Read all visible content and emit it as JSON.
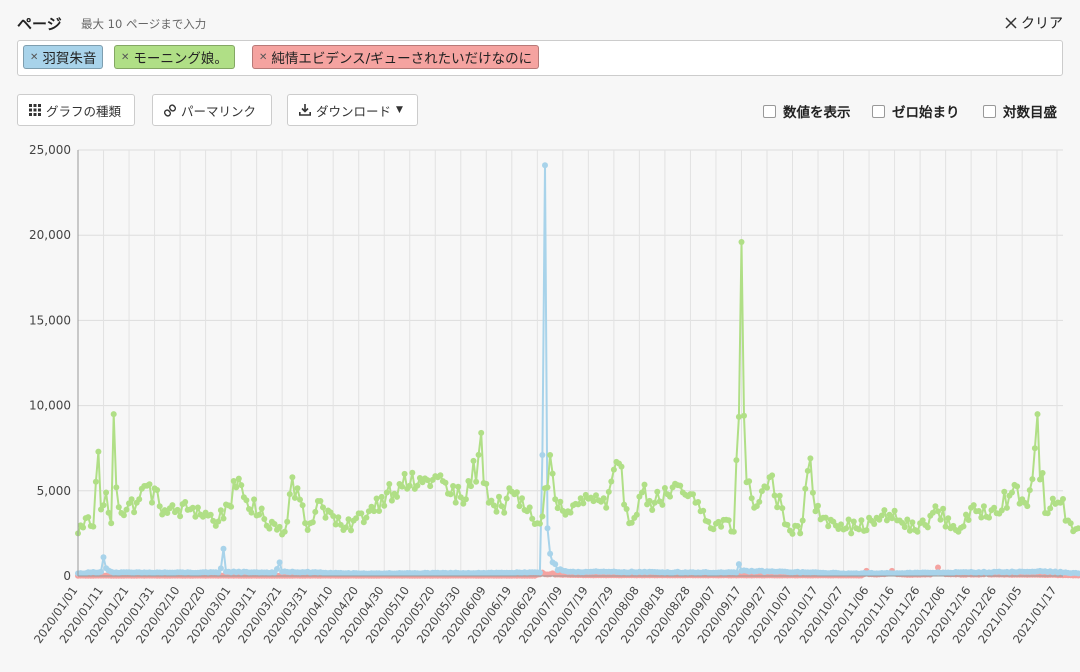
{
  "header": {
    "title": "ページ",
    "hint": "最大 10 ページまで入力",
    "clear_label": "クリア"
  },
  "tags": [
    {
      "label": "羽賀朱音",
      "color": "#a8d3ea"
    },
    {
      "label": "モーニング娘。",
      "color": "#b0df86"
    },
    {
      "label": "純情エビデンス/ギューされたいだけなのに",
      "color": "#f5a3a0"
    }
  ],
  "toolbar": {
    "chart_type_label": "グラフの種類",
    "permalink_label": "パーマリンク",
    "download_label": "ダウンロード",
    "options": [
      {
        "label": "数値を表示",
        "checked": false
      },
      {
        "label": "ゼロ始まり",
        "checked": false
      },
      {
        "label": "対数目盛",
        "checked": false
      }
    ]
  },
  "chart_data": {
    "type": "line",
    "title": "",
    "xlabel": "",
    "ylabel": "",
    "ylim": [
      0,
      25000
    ],
    "yticks": [
      0,
      5000,
      10000,
      15000,
      20000,
      25000
    ],
    "ytick_labels": [
      "0",
      "5,000",
      "10,000",
      "15,000",
      "20,000",
      "25,000"
    ],
    "grid": true,
    "legend": "none",
    "x_start": "2020-01-01",
    "x_end": "2021-01-21",
    "xtick_labels": [
      "2020/01/01",
      "2020/01/11",
      "2020/01/21",
      "2020/01/31",
      "2020/02/10",
      "2020/02/20",
      "2020/03/01",
      "2020/03/11",
      "2020/03/21",
      "2020/03/31",
      "2020/04/10",
      "2020/04/20",
      "2020/04/30",
      "2020/05/10",
      "2020/05/20",
      "2020/05/30",
      "2020/06/09",
      "2020/06/19",
      "2020/06/29",
      "2020/07/09",
      "2020/07/19",
      "2020/07/29",
      "2020/08/08",
      "2020/08/18",
      "2020/08/28",
      "2020/09/07",
      "2020/09/17",
      "2020/09/27",
      "2020/10/07",
      "2020/10/17",
      "2020/10/27",
      "2020/11/06",
      "2020/11/16",
      "2020/11/26",
      "2020/12/06",
      "2020/12/16",
      "2020/12/26",
      "2021/01/05",
      "2021/01/17"
    ],
    "series": [
      {
        "name": "モーニング娘。",
        "color": "#b0df86",
        "baseline": 3000,
        "points": [
          [
            "2020-01-01",
            2500
          ],
          [
            "2020-01-04",
            3400
          ],
          [
            "2020-01-07",
            2900
          ],
          [
            "2020-01-09",
            7300
          ],
          [
            "2020-01-10",
            3900
          ],
          [
            "2020-01-12",
            4900
          ],
          [
            "2020-01-14",
            3100
          ],
          [
            "2020-01-15",
            9500
          ],
          [
            "2020-01-16",
            5200
          ],
          [
            "2020-01-18",
            3700
          ],
          [
            "2020-01-25",
            4500
          ],
          [
            "2020-01-28",
            5300
          ],
          [
            "2020-02-05",
            3700
          ],
          [
            "2020-02-15",
            4000
          ],
          [
            "2020-02-25",
            3200
          ],
          [
            "2020-03-03",
            5200
          ],
          [
            "2020-03-12",
            3600
          ],
          [
            "2020-03-22",
            2600
          ],
          [
            "2020-03-25",
            5800
          ],
          [
            "2020-03-31",
            2700
          ],
          [
            "2020-04-04",
            4400
          ],
          [
            "2020-04-14",
            2700
          ],
          [
            "2020-04-24",
            3800
          ],
          [
            "2020-05-01",
            4900
          ],
          [
            "2020-05-06",
            5400
          ],
          [
            "2020-05-10",
            5300
          ],
          [
            "2020-05-15",
            5500
          ],
          [
            "2020-05-21",
            5800
          ],
          [
            "2020-05-26",
            4800
          ],
          [
            "2020-06-01",
            4500
          ],
          [
            "2020-06-07",
            8400
          ],
          [
            "2020-06-10",
            4300
          ],
          [
            "2020-06-15",
            4100
          ],
          [
            "2020-06-20",
            4800
          ],
          [
            "2020-06-25",
            3800
          ],
          [
            "2020-06-29",
            3100
          ],
          [
            "2020-07-01",
            3500
          ],
          [
            "2020-07-04",
            7100
          ],
          [
            "2020-07-06",
            4500
          ],
          [
            "2020-07-10",
            3600
          ],
          [
            "2020-07-15",
            4200
          ],
          [
            "2020-07-20",
            4600
          ],
          [
            "2020-07-26",
            4000
          ],
          [
            "2020-07-31",
            6600
          ],
          [
            "2020-08-04",
            3100
          ],
          [
            "2020-08-09",
            4900
          ],
          [
            "2020-08-14",
            4300
          ],
          [
            "2020-08-19",
            4800
          ],
          [
            "2020-08-25",
            4900
          ],
          [
            "2020-08-30",
            4300
          ],
          [
            "2020-09-01",
            3800
          ],
          [
            "2020-09-05",
            2800
          ],
          [
            "2020-09-11",
            3300
          ],
          [
            "2020-09-14",
            2600
          ],
          [
            "2020-09-17",
            19600
          ],
          [
            "2020-09-18",
            9400
          ],
          [
            "2020-09-19",
            5500
          ],
          [
            "2020-09-23",
            4100
          ],
          [
            "2020-09-28",
            5800
          ],
          [
            "2020-10-05",
            3000
          ],
          [
            "2020-10-10",
            2500
          ],
          [
            "2020-10-14",
            6900
          ],
          [
            "2020-10-16",
            3800
          ],
          [
            "2020-10-22",
            3300
          ],
          [
            "2020-11-01",
            2800
          ],
          [
            "2020-11-10",
            3300
          ],
          [
            "2020-11-14",
            3600
          ],
          [
            "2020-11-24",
            2700
          ],
          [
            "2020-12-03",
            3800
          ],
          [
            "2020-12-10",
            2700
          ],
          [
            "2020-12-18",
            3800
          ],
          [
            "2020-12-25",
            4000
          ],
          [
            "2021-01-01",
            4900
          ],
          [
            "2021-01-07",
            4100
          ],
          [
            "2021-01-11",
            9500
          ],
          [
            "2021-01-14",
            3700
          ],
          [
            "2021-01-20",
            4300
          ],
          [
            "2021-01-24",
            3100
          ],
          [
            "2021-01-27",
            2800
          ]
        ]
      },
      {
        "name": "羽賀朱音",
        "color": "#a8d3ea",
        "baseline": 150,
        "points": [
          [
            "2020-01-01",
            150
          ],
          [
            "2020-01-10",
            250
          ],
          [
            "2020-01-11",
            1100
          ],
          [
            "2020-01-12",
            450
          ],
          [
            "2020-01-15",
            200
          ],
          [
            "2020-02-25",
            200
          ],
          [
            "2020-02-27",
            1600
          ],
          [
            "2020-02-28",
            250
          ],
          [
            "2020-03-18",
            200
          ],
          [
            "2020-03-20",
            800
          ],
          [
            "2020-03-21",
            250
          ],
          [
            "2020-04-20",
            150
          ],
          [
            "2020-06-30",
            200
          ],
          [
            "2020-07-01",
            7100
          ],
          [
            "2020-07-02",
            24100
          ],
          [
            "2020-07-03",
            2800
          ],
          [
            "2020-07-04",
            1300
          ],
          [
            "2020-07-05",
            800
          ],
          [
            "2020-07-06",
            700
          ],
          [
            "2020-07-08",
            400
          ],
          [
            "2020-07-12",
            250
          ],
          [
            "2020-09-15",
            200
          ],
          [
            "2020-09-16",
            700
          ],
          [
            "2020-09-17",
            300
          ],
          [
            "2020-10-30",
            150
          ],
          [
            "2021-01-10",
            250
          ],
          [
            "2021-01-12",
            300
          ],
          [
            "2021-01-27",
            150
          ]
        ]
      },
      {
        "name": "純情エビデンス/ギューされたいだけなのに",
        "color": "#f5a3a0",
        "baseline": 30,
        "points": [
          [
            "2020-01-01",
            20
          ],
          [
            "2020-06-28",
            20
          ],
          [
            "2020-07-01",
            200
          ],
          [
            "2020-07-05",
            150
          ],
          [
            "2020-07-10",
            80
          ],
          [
            "2020-07-20",
            40
          ],
          [
            "2020-11-03",
            30
          ],
          [
            "2020-11-05",
            300
          ],
          [
            "2020-11-07",
            100
          ],
          [
            "2020-11-15",
            300
          ],
          [
            "2020-11-20",
            80
          ],
          [
            "2020-12-01",
            150
          ],
          [
            "2020-12-03",
            500
          ],
          [
            "2020-12-05",
            200
          ],
          [
            "2020-12-15",
            100
          ],
          [
            "2020-12-22",
            150
          ],
          [
            "2021-01-27",
            30
          ]
        ]
      }
    ]
  }
}
